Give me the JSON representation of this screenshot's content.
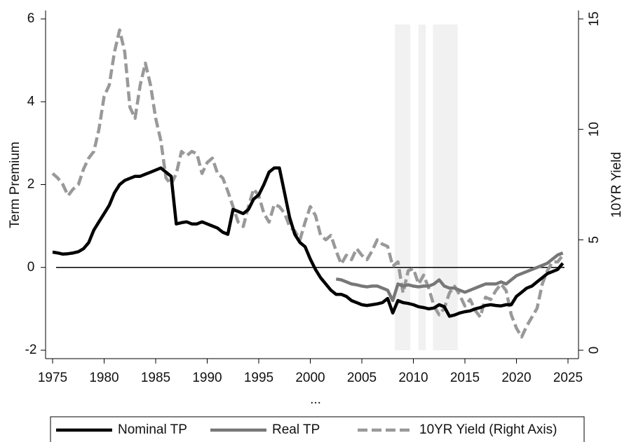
{
  "chart_data": {
    "type": "line",
    "x_label": "...",
    "y_label": "Term Premium",
    "y2_label": "10YR Yield",
    "xlim": [
      1975,
      2025
    ],
    "xticks": [
      1975,
      1980,
      1985,
      1990,
      1995,
      2000,
      2005,
      2010,
      2015,
      2020,
      2025
    ],
    "ylim": [
      -2,
      6
    ],
    "yticks": [
      -2,
      0,
      2,
      4,
      6
    ],
    "y2lim": [
      0,
      15
    ],
    "y2ticks": [
      0,
      5,
      10,
      15
    ],
    "reference_line": 0,
    "shaded_ranges": [
      [
        2008.2,
        2009.7
      ],
      [
        2010.5,
        2011.2
      ],
      [
        2011.9,
        2012.3
      ],
      [
        2012.3,
        2014.3
      ]
    ],
    "shade_color": "#eeeeee",
    "legend": "bottom",
    "x": [
      1975,
      1975.5,
      1976,
      1976.5,
      1977,
      1977.5,
      1978,
      1978.5,
      1979,
      1979.5,
      1980,
      1980.5,
      1981,
      1981.5,
      1982,
      1982.5,
      1983,
      1983.5,
      1984,
      1984.5,
      1985,
      1985.5,
      1986,
      1986.5,
      1987,
      1987.5,
      1988,
      1988.5,
      1989,
      1989.5,
      1990,
      1990.5,
      1991,
      1991.5,
      1992,
      1992.5,
      1993,
      1993.5,
      1994,
      1994.5,
      1995,
      1995.5,
      1996,
      1996.5,
      1997,
      1997.5,
      1998,
      1998.5,
      1999,
      1999.5,
      2000,
      2000.5,
      2001,
      2001.5,
      2002,
      2002.5,
      2003,
      2003.5,
      2004,
      2004.5,
      2005,
      2005.5,
      2006,
      2006.5,
      2007,
      2007.5,
      2008,
      2008.5,
      2009,
      2009.5,
      2010,
      2010.5,
      2011,
      2011.5,
      2012,
      2012.5,
      2013,
      2013.5,
      2014,
      2014.5,
      2015,
      2015.5,
      2016,
      2016.5,
      2017,
      2017.5,
      2018,
      2018.5,
      2019,
      2019.5,
      2020,
      2020.5,
      2021,
      2021.5,
      2022,
      2022.5,
      2023,
      2023.5,
      2024,
      2024.5
    ],
    "series": [
      {
        "name": "Nominal TP",
        "color": "#000000",
        "width": 4.5,
        "values": [
          0.37,
          0.35,
          0.32,
          0.33,
          0.35,
          0.38,
          0.45,
          0.6,
          0.9,
          1.1,
          1.3,
          1.5,
          1.8,
          2.0,
          2.1,
          2.15,
          2.2,
          2.2,
          2.25,
          2.3,
          2.35,
          2.4,
          2.3,
          2.2,
          1.05,
          1.08,
          1.1,
          1.05,
          1.05,
          1.1,
          1.05,
          1.0,
          0.95,
          0.85,
          0.8,
          1.4,
          1.35,
          1.3,
          1.4,
          1.65,
          1.75,
          2.0,
          2.3,
          2.4,
          2.4,
          1.8,
          1.2,
          0.8,
          0.6,
          0.5,
          0.2,
          -0.05,
          -0.25,
          -0.4,
          -0.55,
          -0.65,
          -0.65,
          -0.7,
          -0.8,
          -0.85,
          -0.9,
          -0.92,
          -0.9,
          -0.88,
          -0.85,
          -0.75,
          -1.1,
          -0.8,
          -0.85,
          -0.87,
          -0.9,
          -0.95,
          -0.97,
          -1.0,
          -0.98,
          -0.9,
          -0.95,
          -1.18,
          -1.15,
          -1.1,
          -1.07,
          -1.05,
          -1.0,
          -0.97,
          -0.92,
          -0.9,
          -0.92,
          -0.93,
          -0.9,
          -0.9,
          -0.7,
          -0.6,
          -0.5,
          -0.45,
          -0.35,
          -0.25,
          -0.15,
          -0.1,
          -0.05,
          0.1
        ]
      },
      {
        "name": "Real TP",
        "color": "#777777",
        "width": 4.5,
        "values": [
          null,
          null,
          null,
          null,
          null,
          null,
          null,
          null,
          null,
          null,
          null,
          null,
          null,
          null,
          null,
          null,
          null,
          null,
          null,
          null,
          null,
          null,
          null,
          null,
          null,
          null,
          null,
          null,
          null,
          null,
          null,
          null,
          null,
          null,
          null,
          null,
          null,
          null,
          null,
          null,
          null,
          null,
          null,
          null,
          null,
          null,
          null,
          null,
          null,
          null,
          null,
          null,
          null,
          null,
          null,
          -0.28,
          -0.3,
          -0.35,
          -0.4,
          -0.42,
          -0.45,
          -0.47,
          -0.45,
          -0.45,
          -0.5,
          -0.55,
          -0.8,
          -0.4,
          -0.45,
          -0.42,
          -0.45,
          -0.47,
          -0.45,
          -0.45,
          -0.4,
          -0.3,
          -0.45,
          -0.5,
          -0.5,
          -0.55,
          -0.6,
          -0.55,
          -0.5,
          -0.45,
          -0.4,
          -0.4,
          -0.4,
          -0.35,
          -0.4,
          -0.3,
          -0.2,
          -0.15,
          -0.1,
          -0.05,
          0.0,
          0.05,
          0.1,
          0.2,
          0.3,
          0.35
        ]
      },
      {
        "name": "10YR Yield (Right Axis)",
        "color": "#999999",
        "width": 4.5,
        "dash": true,
        "axis": "y2",
        "values": [
          8.0,
          7.8,
          7.5,
          7.0,
          7.3,
          7.5,
          8.2,
          8.7,
          9.0,
          10.0,
          11.5,
          12.0,
          13.5,
          14.5,
          13.5,
          11.0,
          10.5,
          12.0,
          13.0,
          12.0,
          10.5,
          9.5,
          7.8,
          7.5,
          8.0,
          9.0,
          8.8,
          9.0,
          8.9,
          8.0,
          8.5,
          8.7,
          8.0,
          7.8,
          7.2,
          6.5,
          5.8,
          5.6,
          6.5,
          7.3,
          7.0,
          6.2,
          5.8,
          6.6,
          6.5,
          6.2,
          5.6,
          5.4,
          5.0,
          5.8,
          6.5,
          6.1,
          5.2,
          5.0,
          5.2,
          4.5,
          3.9,
          4.3,
          4.1,
          4.6,
          4.3,
          4.1,
          4.5,
          5.0,
          4.8,
          4.7,
          3.8,
          4.0,
          2.6,
          3.6,
          3.7,
          3.0,
          3.4,
          2.8,
          2.0,
          1.6,
          1.9,
          2.6,
          2.9,
          2.5,
          2.0,
          2.3,
          1.8,
          1.5,
          2.4,
          2.3,
          2.7,
          3.0,
          2.7,
          1.6,
          1.0,
          0.6,
          1.1,
          1.5,
          1.9,
          3.0,
          3.6,
          4.0,
          4.0,
          4.3
        ]
      }
    ]
  }
}
